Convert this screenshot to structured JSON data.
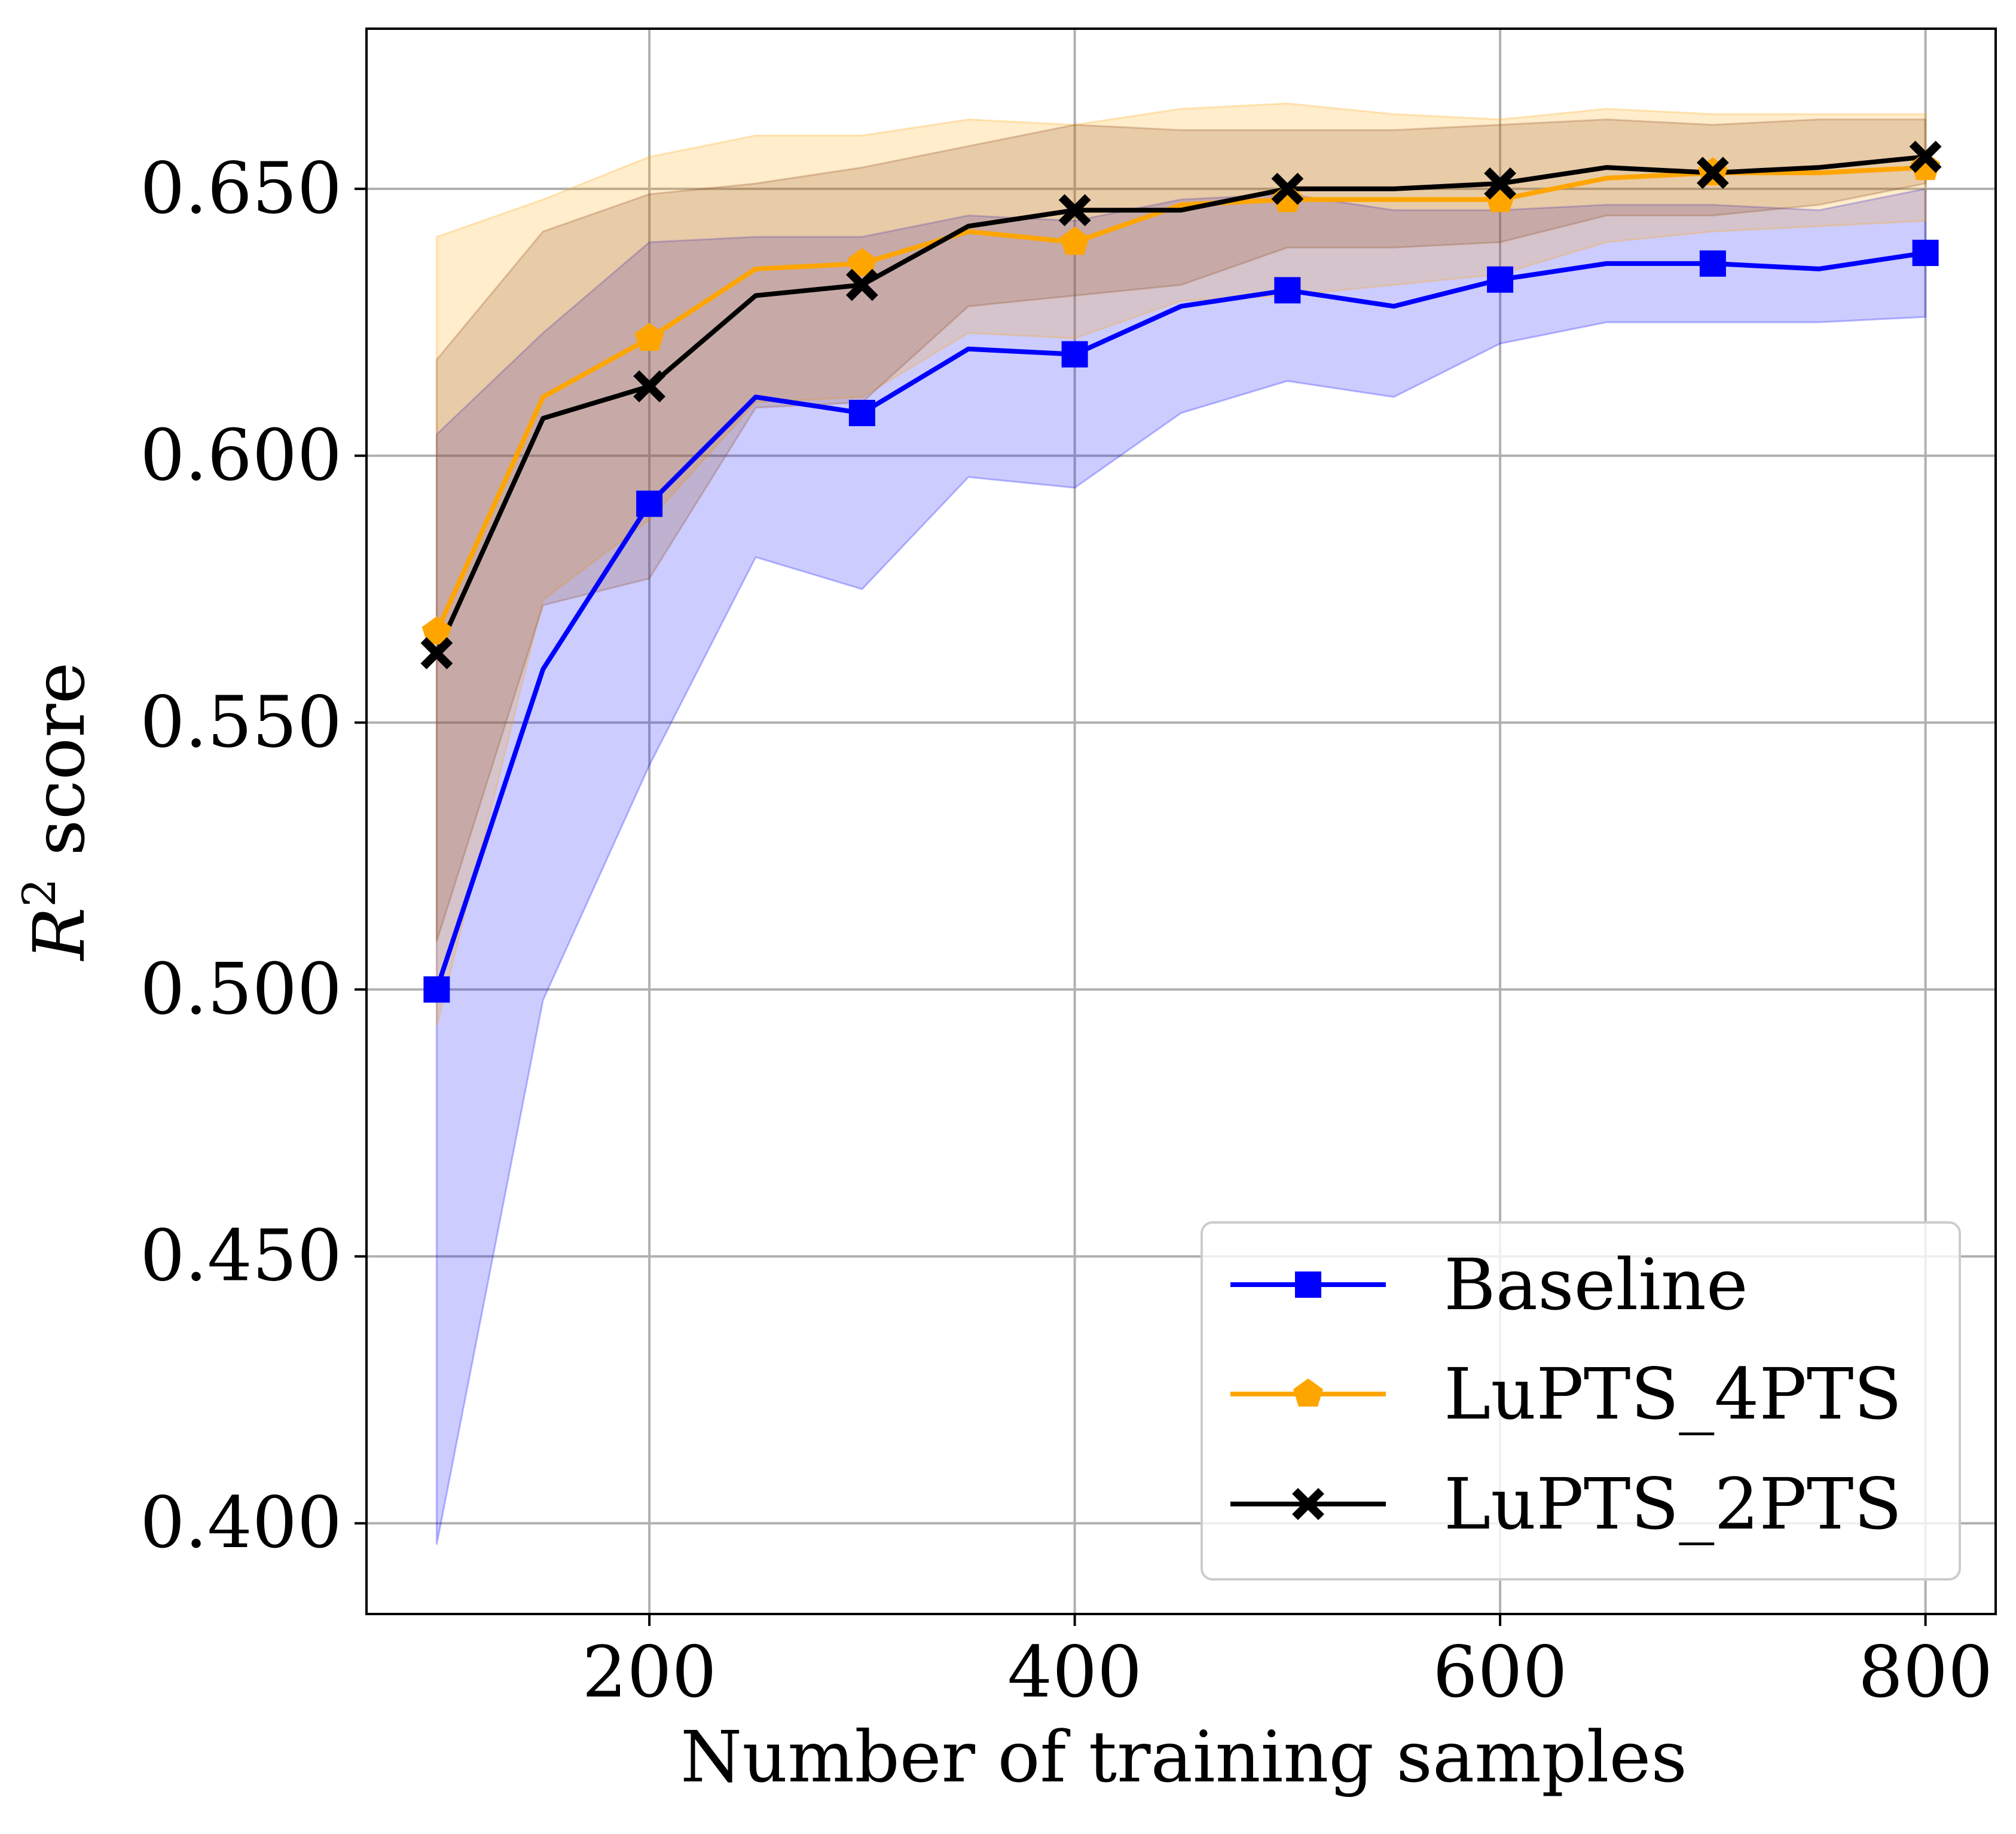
{
  "chart_data": {
    "type": "line",
    "xlabel": "Number of training samples",
    "ylabel_prefix": "R",
    "ylabel_sup": "2",
    "ylabel_suffix": " score",
    "xlim": [
      67,
      833
    ],
    "ylim": [
      0.383,
      0.68
    ],
    "xticks": [
      200,
      400,
      600,
      800
    ],
    "xtick_labels": [
      "200",
      "400",
      "600",
      "800"
    ],
    "yticks": [
      0.4,
      0.45,
      0.5,
      0.55,
      0.6,
      0.65
    ],
    "ytick_labels": [
      "0.400",
      "0.450",
      "0.500",
      "0.550",
      "0.600",
      "0.650"
    ],
    "grid": true,
    "legend_position": "lower-right",
    "x": [
      100,
      150,
      200,
      250,
      300,
      350,
      400,
      450,
      500,
      550,
      600,
      650,
      700,
      750,
      800
    ],
    "series": [
      {
        "name": "Baseline",
        "color": "#0000ff",
        "fill_color": "#0000ff",
        "fill_opacity": 0.2,
        "marker": "square",
        "marker_every": 2,
        "values": [
          0.5,
          0.56,
          0.591,
          0.611,
          0.608,
          0.62,
          0.619,
          0.628,
          0.631,
          0.628,
          0.633,
          0.636,
          0.636,
          0.635,
          0.638
        ],
        "lower": [
          0.396,
          0.498,
          0.542,
          0.581,
          0.575,
          0.596,
          0.594,
          0.608,
          0.614,
          0.611,
          0.621,
          0.625,
          0.625,
          0.625,
          0.626
        ],
        "upper": [
          0.604,
          0.623,
          0.64,
          0.641,
          0.641,
          0.645,
          0.644,
          0.648,
          0.649,
          0.646,
          0.646,
          0.647,
          0.647,
          0.646,
          0.65
        ]
      },
      {
        "name": "LuPTS_4PTS",
        "color": "#ffa500",
        "fill_color": "#ffa500",
        "fill_opacity": 0.2,
        "marker": "pentagon",
        "marker_every": 2,
        "values": [
          0.567,
          0.611,
          0.622,
          0.635,
          0.636,
          0.642,
          0.64,
          0.647,
          0.648,
          0.648,
          0.648,
          0.652,
          0.653,
          0.653,
          0.654
        ],
        "lower": [
          0.493,
          0.573,
          0.588,
          0.61,
          0.611,
          0.623,
          0.622,
          0.629,
          0.63,
          0.632,
          0.634,
          0.64,
          0.642,
          0.643,
          0.644
        ],
        "upper": [
          0.641,
          0.648,
          0.656,
          0.66,
          0.66,
          0.663,
          0.662,
          0.665,
          0.666,
          0.664,
          0.663,
          0.665,
          0.664,
          0.664,
          0.664
        ]
      },
      {
        "name": "LuPTS_2PTS",
        "color": "#000000",
        "fill_color": "#8b4513",
        "fill_opacity": 0.2,
        "marker": "x",
        "marker_every": 2,
        "values": [
          0.563,
          0.607,
          0.613,
          0.63,
          0.632,
          0.643,
          0.646,
          0.646,
          0.65,
          0.65,
          0.651,
          0.654,
          0.653,
          0.654,
          0.656
        ],
        "lower": [
          0.509,
          0.572,
          0.577,
          0.609,
          0.61,
          0.628,
          0.63,
          0.632,
          0.639,
          0.639,
          0.64,
          0.645,
          0.645,
          0.647,
          0.651
        ],
        "upper": [
          0.618,
          0.642,
          0.649,
          0.651,
          0.654,
          0.658,
          0.662,
          0.661,
          0.661,
          0.661,
          0.662,
          0.663,
          0.662,
          0.663,
          0.663
        ]
      }
    ]
  }
}
